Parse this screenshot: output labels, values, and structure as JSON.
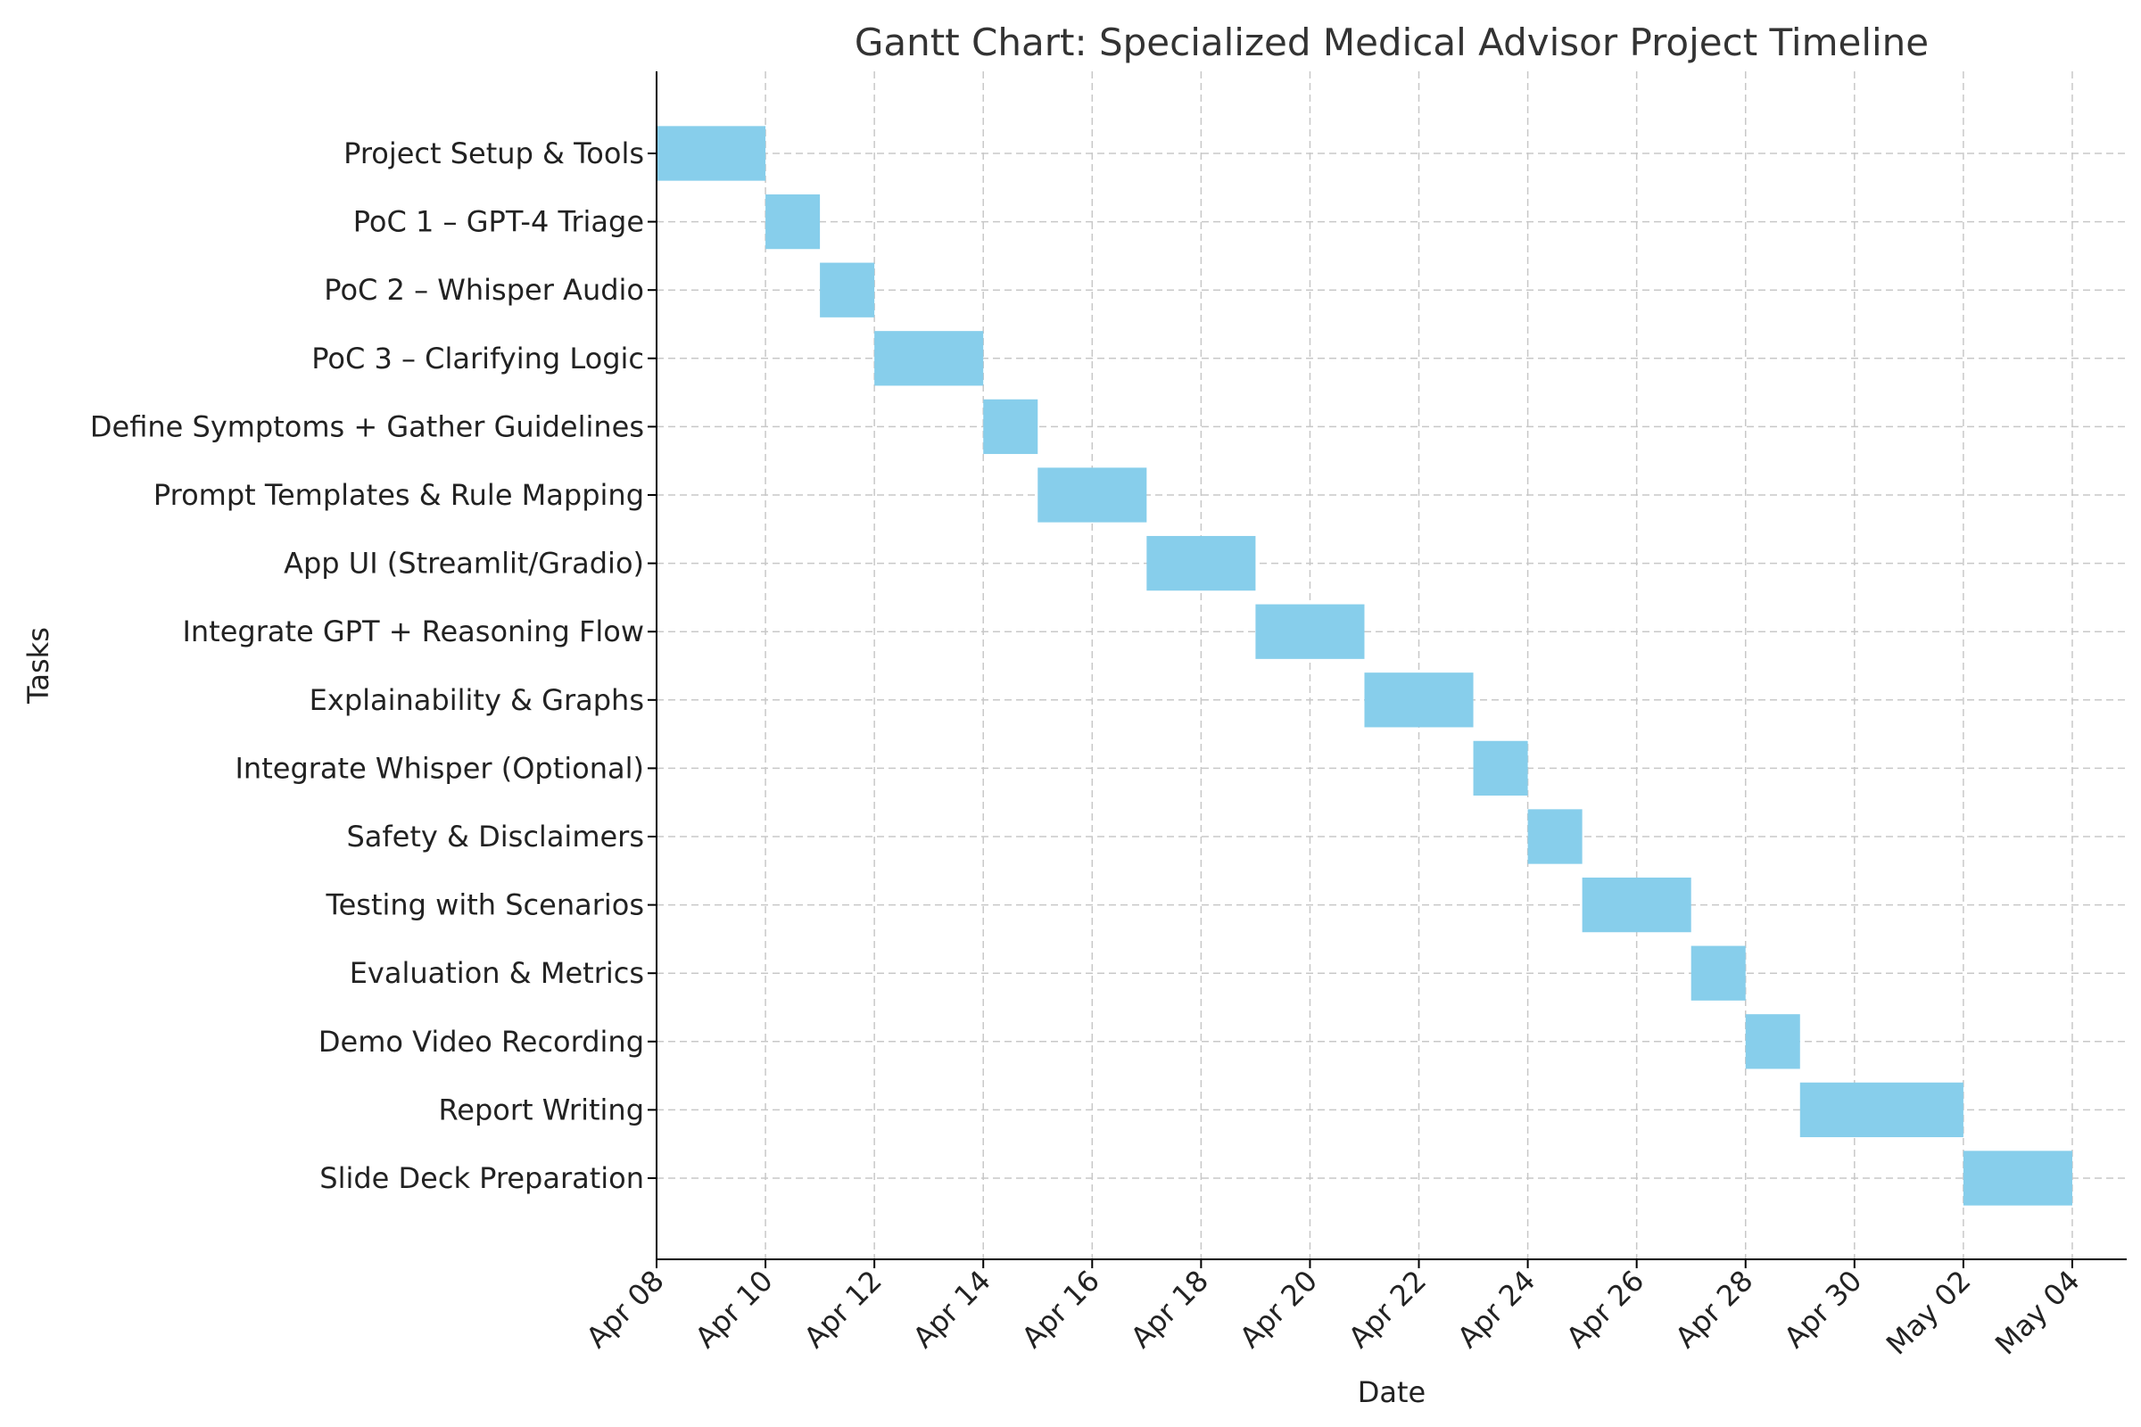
{
  "chart_data": {
    "type": "gantt",
    "title": "Gantt Chart: Specialized Medical Advisor Project Timeline",
    "xlabel": "Date",
    "ylabel": "Tasks",
    "xlim": [
      "2025-04-08",
      "2025-05-05"
    ],
    "x_ticks": [
      {
        "date": "2025-04-08",
        "label": "Apr 08"
      },
      {
        "date": "2025-04-10",
        "label": "Apr 10"
      },
      {
        "date": "2025-04-12",
        "label": "Apr 12"
      },
      {
        "date": "2025-04-14",
        "label": "Apr 14"
      },
      {
        "date": "2025-04-16",
        "label": "Apr 16"
      },
      {
        "date": "2025-04-18",
        "label": "Apr 18"
      },
      {
        "date": "2025-04-20",
        "label": "Apr 20"
      },
      {
        "date": "2025-04-22",
        "label": "Apr 22"
      },
      {
        "date": "2025-04-24",
        "label": "Apr 24"
      },
      {
        "date": "2025-04-26",
        "label": "Apr 26"
      },
      {
        "date": "2025-04-28",
        "label": "Apr 28"
      },
      {
        "date": "2025-04-30",
        "label": "Apr 30"
      },
      {
        "date": "2025-05-02",
        "label": "May 02"
      },
      {
        "date": "2025-05-04",
        "label": "May 04"
      }
    ],
    "grid": true,
    "bar_color": "#87ceeb",
    "tasks": [
      {
        "name": "Project Setup & Tools",
        "start": "2025-04-08",
        "end": "2025-04-10"
      },
      {
        "name": "PoC 1 – GPT-4 Triage",
        "start": "2025-04-10",
        "end": "2025-04-11"
      },
      {
        "name": "PoC 2 – Whisper Audio",
        "start": "2025-04-11",
        "end": "2025-04-12"
      },
      {
        "name": "PoC 3 – Clarifying Logic",
        "start": "2025-04-12",
        "end": "2025-04-14"
      },
      {
        "name": "Define Symptoms + Gather Guidelines",
        "start": "2025-04-14",
        "end": "2025-04-15"
      },
      {
        "name": "Prompt Templates & Rule Mapping",
        "start": "2025-04-15",
        "end": "2025-04-17"
      },
      {
        "name": "App UI (Streamlit/Gradio)",
        "start": "2025-04-17",
        "end": "2025-04-19"
      },
      {
        "name": "Integrate GPT + Reasoning Flow",
        "start": "2025-04-19",
        "end": "2025-04-21"
      },
      {
        "name": "Explainability & Graphs",
        "start": "2025-04-21",
        "end": "2025-04-23"
      },
      {
        "name": "Integrate Whisper (Optional)",
        "start": "2025-04-23",
        "end": "2025-04-24"
      },
      {
        "name": "Safety & Disclaimers",
        "start": "2025-04-24",
        "end": "2025-04-25"
      },
      {
        "name": "Testing with Scenarios",
        "start": "2025-04-25",
        "end": "2025-04-27"
      },
      {
        "name": "Evaluation & Metrics",
        "start": "2025-04-27",
        "end": "2025-04-28"
      },
      {
        "name": "Demo Video Recording",
        "start": "2025-04-28",
        "end": "2025-04-29"
      },
      {
        "name": "Report Writing",
        "start": "2025-04-29",
        "end": "2025-05-02"
      },
      {
        "name": "Slide Deck Preparation",
        "start": "2025-05-02",
        "end": "2025-05-04"
      }
    ]
  }
}
